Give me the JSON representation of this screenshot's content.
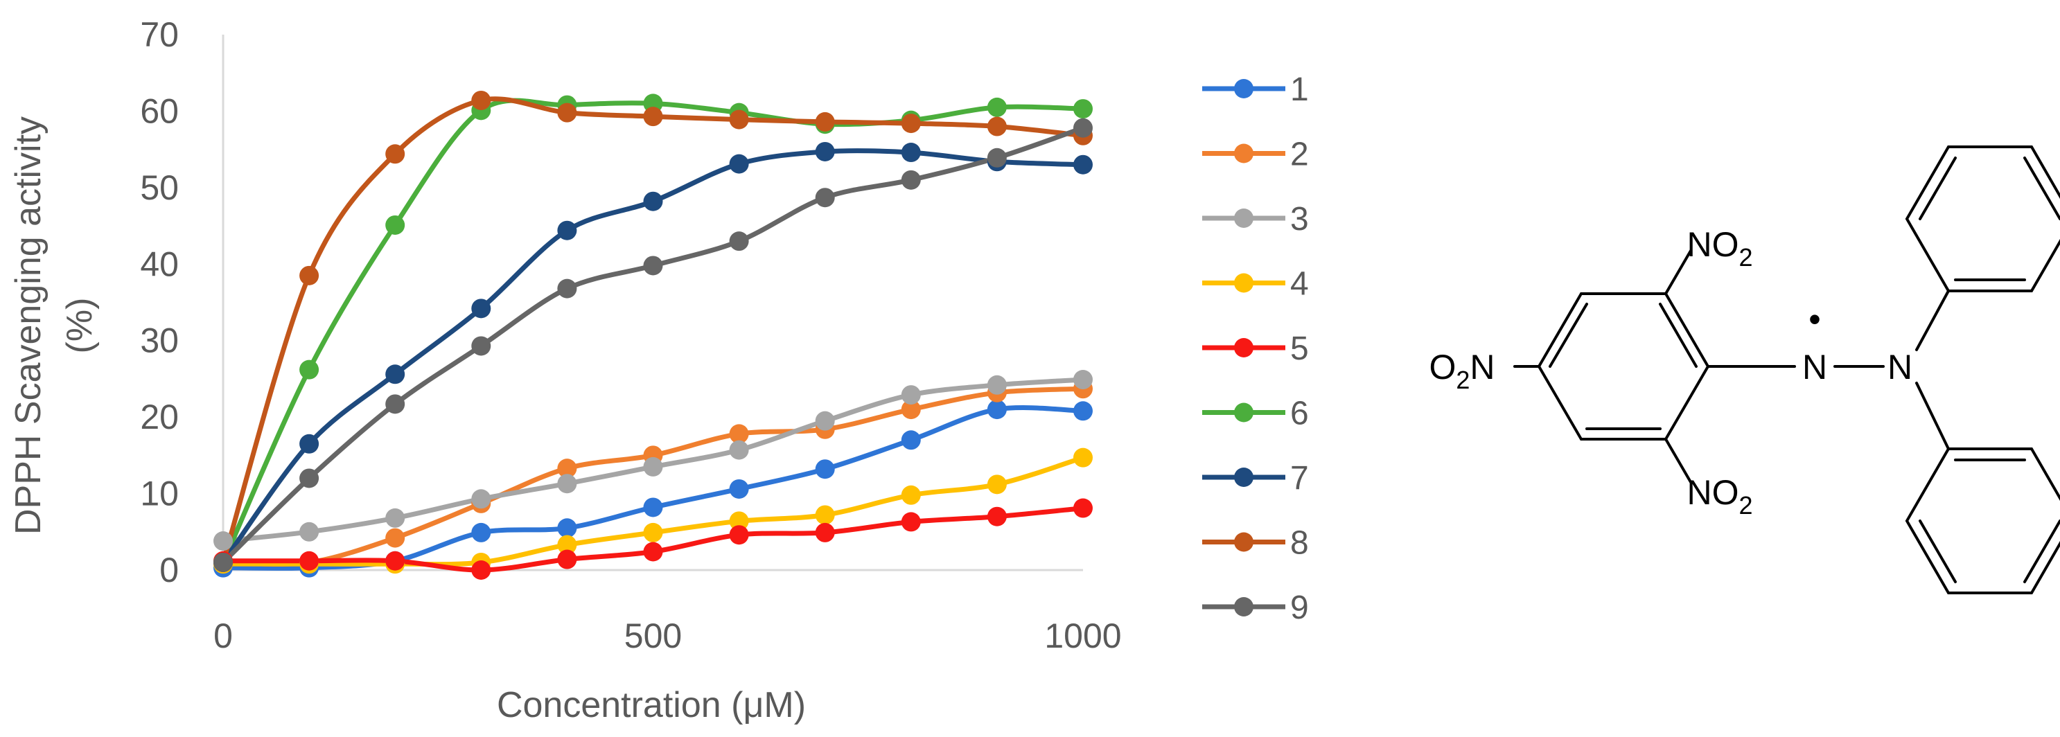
{
  "chart_data": {
    "type": "line",
    "title": "",
    "xlabel": "Concentration (μM)",
    "ylabel_line1": "DPPH Scavenging activity",
    "ylabel_line2": "(%)",
    "xlim": [
      0,
      1000
    ],
    "ylim": [
      0,
      70
    ],
    "x_ticks": [
      0,
      500,
      1000
    ],
    "y_ticks": [
      0,
      10,
      20,
      30,
      40,
      50,
      60,
      70
    ],
    "grid": false,
    "legend_position": "right",
    "x": [
      0,
      100,
      200,
      300,
      400,
      500,
      600,
      700,
      800,
      900,
      1000
    ],
    "series": [
      {
        "name": "1",
        "color": "#2E75D6",
        "values": [
          0.3,
          0.3,
          1.2,
          4.9,
          5.5,
          8.2,
          10.6,
          13.2,
          17.0,
          21.0,
          20.8
        ]
      },
      {
        "name": "2",
        "color": "#F07F2E",
        "values": [
          1.0,
          1.0,
          4.2,
          8.7,
          13.3,
          15.0,
          17.8,
          18.4,
          21.0,
          23.2,
          23.7
        ]
      },
      {
        "name": "3",
        "color": "#A5A5A5",
        "values": [
          3.8,
          5.0,
          6.8,
          9.3,
          11.3,
          13.5,
          15.7,
          19.5,
          22.9,
          24.2,
          24.9
        ]
      },
      {
        "name": "4",
        "color": "#FFC000",
        "values": [
          0.8,
          0.8,
          0.8,
          1.0,
          3.3,
          4.9,
          6.4,
          7.2,
          9.8,
          11.2,
          14.7
        ]
      },
      {
        "name": "5",
        "color": "#F71814",
        "values": [
          1.2,
          1.2,
          1.2,
          0.0,
          1.4,
          2.4,
          4.6,
          4.9,
          6.3,
          7.0,
          8.1
        ]
      },
      {
        "name": "6",
        "color": "#4BAE3C",
        "values": [
          1.0,
          26.2,
          45.1,
          60.1,
          60.8,
          61.0,
          59.8,
          58.3,
          58.8,
          60.5,
          60.3
        ]
      },
      {
        "name": "7",
        "color": "#1E4A7E",
        "values": [
          1.0,
          16.5,
          25.6,
          34.2,
          44.4,
          48.2,
          53.1,
          54.7,
          54.6,
          53.4,
          53.0
        ]
      },
      {
        "name": "8",
        "color": "#C2561A",
        "values": [
          1.0,
          38.5,
          54.4,
          61.4,
          59.8,
          59.3,
          58.9,
          58.6,
          58.4,
          58.0,
          56.8
        ]
      },
      {
        "name": "9",
        "color": "#666666",
        "values": [
          1.0,
          12.0,
          21.7,
          29.3,
          36.8,
          39.8,
          43.0,
          48.7,
          51.0,
          53.9,
          57.8
        ]
      }
    ]
  },
  "molecule": {
    "name": "DPPH radical",
    "labels": {
      "nitro_top": "NO",
      "nitro_top_sub": "2",
      "nitro_bottom": "NO",
      "nitro_bottom_sub": "2",
      "nitro_left_prefix": "O",
      "nitro_left_sub": "2",
      "nitro_left_suffix": "N",
      "amine_n1": "N",
      "amine_n2": "N",
      "radical_dot": "•"
    }
  }
}
